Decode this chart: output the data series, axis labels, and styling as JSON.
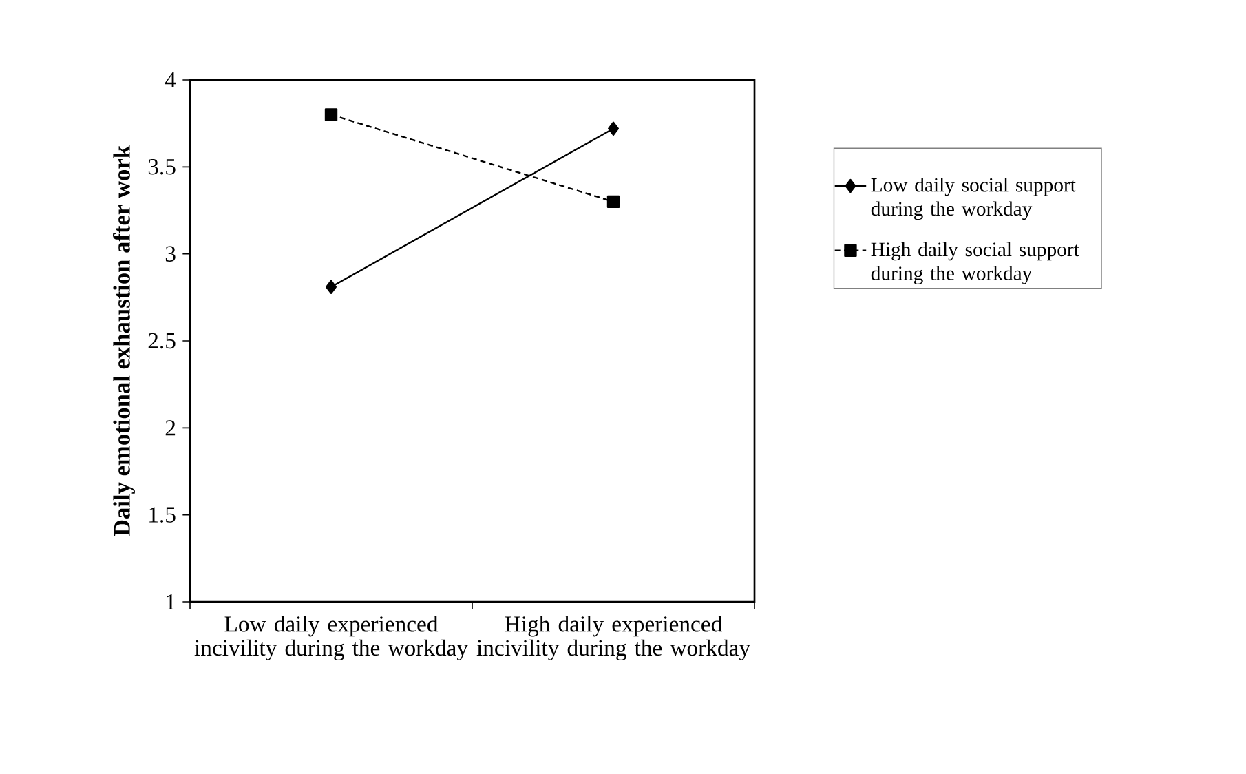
{
  "chart_data": {
    "type": "line",
    "ylabel": "Daily emotional exhaustion after work",
    "categories": [
      "Low daily experienced incivility during the workday",
      "High daily experienced incivility during the workday"
    ],
    "series": [
      {
        "name": "Low daily social support during the workday",
        "color": "#000000",
        "values": [
          2.81,
          3.72
        ],
        "marker": "diamond",
        "line_style": "solid"
      },
      {
        "name": "High daily social support during the workday",
        "color": "#000000",
        "values": [
          3.8,
          3.3
        ],
        "marker": "square",
        "line_style": "dashed"
      }
    ],
    "ylim": [
      1,
      4
    ],
    "yticks": [
      1,
      1.5,
      2,
      2.5,
      3,
      3.5,
      4
    ],
    "grid": false,
    "legend": "right"
  }
}
